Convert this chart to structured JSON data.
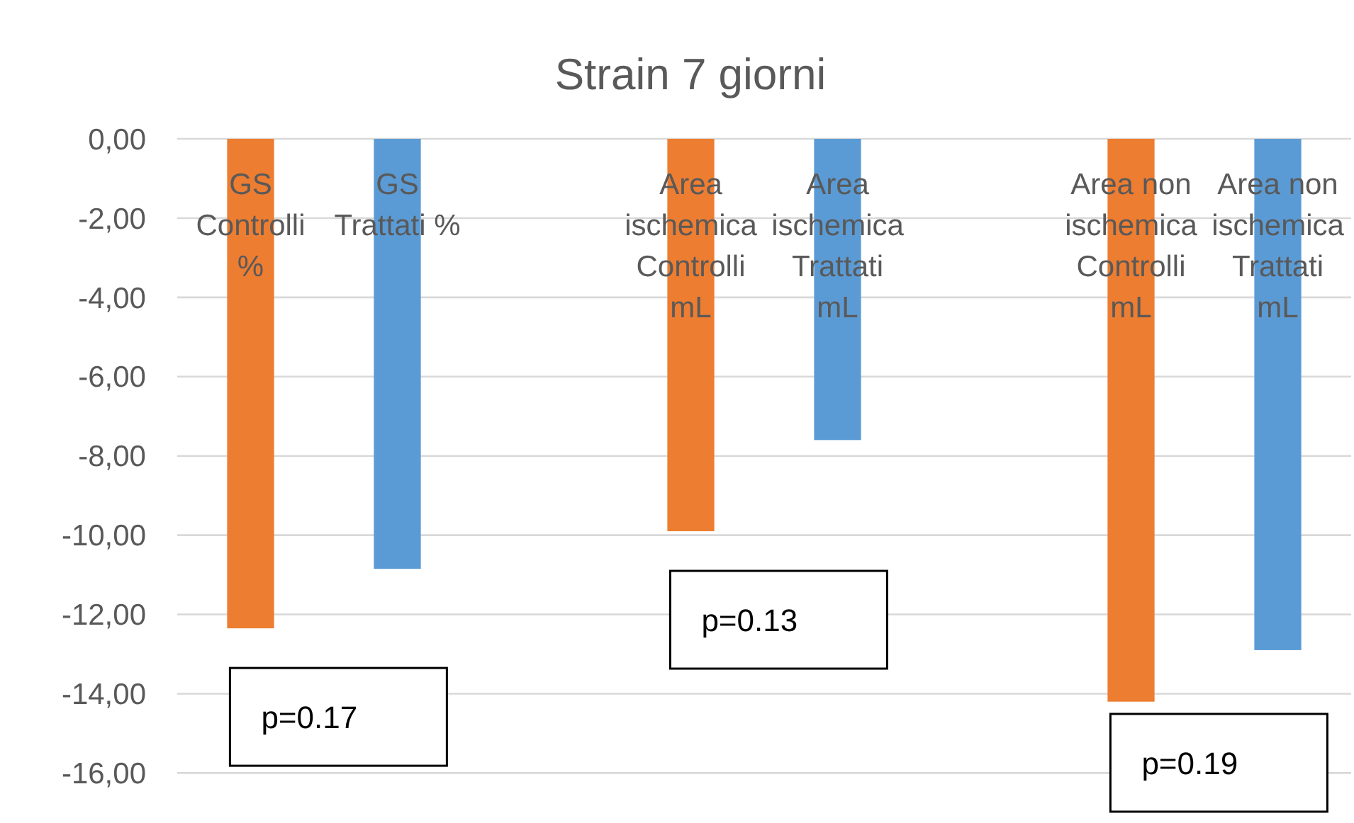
{
  "chart_data": {
    "type": "bar",
    "title": "Strain 7 giorni",
    "categories": [
      "GS Controlli %",
      "GS Trattati %",
      null,
      "Area ischemica Controlli mL",
      "Area ischemica Trattati mL",
      null,
      "Area non ischemica Controlli mL",
      "Area non ischemica Trattati mL"
    ],
    "values": [
      -12.35,
      -10.85,
      null,
      -9.9,
      -7.6,
      null,
      -14.2,
      -12.9
    ],
    "colors": [
      "#ed7d31",
      "#5b9bd5",
      null,
      "#ed7d31",
      "#5b9bd5",
      null,
      "#ed7d31",
      "#5b9bd5"
    ],
    "ylim": [
      -16,
      0
    ],
    "yticks": [
      {
        "value": 0,
        "label": "0,00"
      },
      {
        "value": -2,
        "label": "-2,00"
      },
      {
        "value": -4,
        "label": "-4,00"
      },
      {
        "value": -6,
        "label": "-6,00"
      },
      {
        "value": -8,
        "label": "-8,00"
      },
      {
        "value": -10,
        "label": "-10,00"
      },
      {
        "value": -12,
        "label": "-12,00"
      },
      {
        "value": -14,
        "label": "-14,00"
      },
      {
        "value": -16,
        "label": "-16,00"
      }
    ],
    "grid": "y",
    "annotations": [
      "p=0.17",
      "p=0.13",
      "p=0.19"
    ]
  }
}
